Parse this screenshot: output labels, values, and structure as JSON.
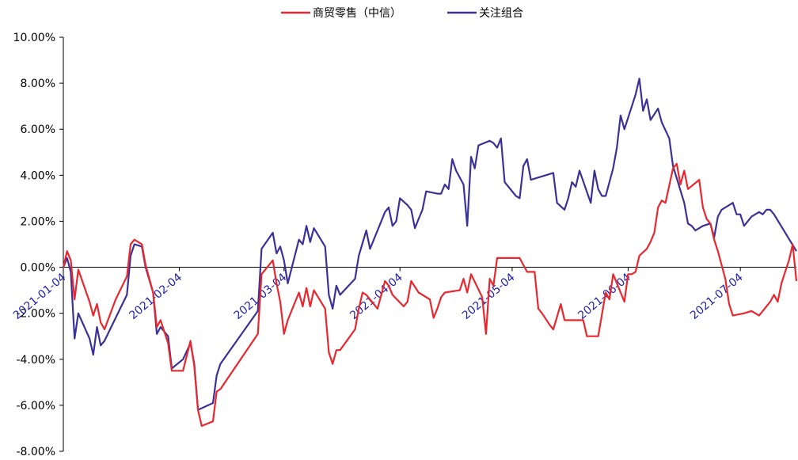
{
  "chart_data": {
    "type": "line",
    "title": "",
    "xlabel": "",
    "ylabel": "",
    "ylim": [
      -8,
      10
    ],
    "xlim": [
      "2021-01-04",
      "2021-07-19"
    ],
    "grid": false,
    "legend_placement": "top-center",
    "y_ticks": [
      "10.00%",
      "8.00%",
      "6.00%",
      "4.00%",
      "2.00%",
      "0.00%",
      "-2.00%",
      "-4.00%",
      "-6.00%",
      "-8.00%"
    ],
    "x_ticks": [
      {
        "label": "2021-01-04",
        "date": "2021-01-04"
      },
      {
        "label": "2021-02-04",
        "date": "2021-02-04"
      },
      {
        "label": "2021-03-04",
        "date": "2021-03-04"
      },
      {
        "label": "2021-04-04",
        "date": "2021-04-04"
      },
      {
        "label": "2021-05-04",
        "date": "2021-05-04"
      },
      {
        "label": "2021-06-04",
        "date": "2021-06-04"
      },
      {
        "label": "2021-07-04",
        "date": "2021-07-04"
      }
    ],
    "series": [
      {
        "name": "商贸零售（中信）",
        "color": "#e8282e",
        "points": [
          [
            "2021-01-04",
            0.0
          ],
          [
            "2021-01-05",
            0.7
          ],
          [
            "2021-01-06",
            0.3
          ],
          [
            "2021-01-07",
            -1.4
          ],
          [
            "2021-01-08",
            -0.1
          ],
          [
            "2021-01-11",
            -1.5
          ],
          [
            "2021-01-12",
            -2.1
          ],
          [
            "2021-01-13",
            -1.6
          ],
          [
            "2021-01-14",
            -2.4
          ],
          [
            "2021-01-15",
            -2.7
          ],
          [
            "2021-01-18",
            -1.4
          ],
          [
            "2021-01-21",
            -0.4
          ],
          [
            "2021-01-22",
            1.0
          ],
          [
            "2021-01-23",
            1.2
          ],
          [
            "2021-01-25",
            1.0
          ],
          [
            "2021-01-26",
            0.1
          ],
          [
            "2021-01-28",
            -1.1
          ],
          [
            "2021-01-29",
            -2.6
          ],
          [
            "2021-01-30",
            -2.3
          ],
          [
            "2021-02-01",
            -3.3
          ],
          [
            "2021-02-02",
            -4.5
          ],
          [
            "2021-02-05",
            -4.5
          ],
          [
            "2021-02-07",
            -3.2
          ],
          [
            "2021-02-08",
            -4.3
          ],
          [
            "2021-02-09",
            -6.2
          ],
          [
            "2021-02-10",
            -6.9
          ],
          [
            "2021-02-13",
            -6.7
          ],
          [
            "2021-02-14",
            -5.4
          ],
          [
            "2021-02-15",
            -5.3
          ],
          [
            "2021-02-25",
            -2.9
          ],
          [
            "2021-02-26",
            -0.3
          ],
          [
            "2021-03-01",
            0.3
          ],
          [
            "2021-03-02",
            -0.7
          ],
          [
            "2021-03-03",
            -1.5
          ],
          [
            "2021-03-04",
            -2.9
          ],
          [
            "2021-03-05",
            -2.3
          ],
          [
            "2021-03-08",
            -1.1
          ],
          [
            "2021-03-09",
            -1.7
          ],
          [
            "2021-03-10",
            -0.9
          ],
          [
            "2021-03-11",
            -1.7
          ],
          [
            "2021-03-12",
            -1.0
          ],
          [
            "2021-03-15",
            -1.8
          ],
          [
            "2021-03-16",
            -3.7
          ],
          [
            "2021-03-17",
            -4.2
          ],
          [
            "2021-03-18",
            -3.6
          ],
          [
            "2021-03-19",
            -3.6
          ],
          [
            "2021-03-23",
            -2.7
          ],
          [
            "2021-03-24",
            -1.8
          ],
          [
            "2021-03-25",
            -1.1
          ],
          [
            "2021-03-26",
            -1.2
          ],
          [
            "2021-03-29",
            -1.8
          ],
          [
            "2021-03-31",
            -0.6
          ],
          [
            "2021-04-01",
            -0.8
          ],
          [
            "2021-04-02",
            -1.2
          ],
          [
            "2021-04-05",
            -1.7
          ],
          [
            "2021-04-06",
            -1.5
          ],
          [
            "2021-04-07",
            -0.6
          ],
          [
            "2021-04-09",
            -1.1
          ],
          [
            "2021-04-12",
            -1.4
          ],
          [
            "2021-04-13",
            -2.2
          ],
          [
            "2021-04-14",
            -1.8
          ],
          [
            "2021-04-15",
            -1.3
          ],
          [
            "2021-04-16",
            -1.1
          ],
          [
            "2021-04-20",
            -1.0
          ],
          [
            "2021-04-21",
            -0.5
          ],
          [
            "2021-04-22",
            -1.1
          ],
          [
            "2021-04-23",
            -0.3
          ],
          [
            "2021-04-26",
            -1.3
          ],
          [
            "2021-04-27",
            -2.9
          ],
          [
            "2021-04-28",
            -0.5
          ],
          [
            "2021-04-29",
            -0.8
          ],
          [
            "2021-04-30",
            0.4
          ],
          [
            "2021-05-04",
            0.4
          ],
          [
            "2021-05-06",
            0.4
          ],
          [
            "2021-05-08",
            -0.2
          ],
          [
            "2021-05-10",
            -0.2
          ],
          [
            "2021-05-11",
            -1.8
          ],
          [
            "2021-05-12",
            -2.0
          ],
          [
            "2021-05-14",
            -2.5
          ],
          [
            "2021-05-15",
            -2.7
          ],
          [
            "2021-05-17",
            -1.6
          ],
          [
            "2021-05-18",
            -2.3
          ],
          [
            "2021-05-23",
            -2.3
          ],
          [
            "2021-05-24",
            -3.0
          ],
          [
            "2021-05-27",
            -3.0
          ],
          [
            "2021-05-29",
            -1.1
          ],
          [
            "2021-05-30",
            -1.4
          ],
          [
            "2021-05-31",
            -0.3
          ],
          [
            "2021-06-03",
            -1.5
          ],
          [
            "2021-06-04",
            -0.3
          ],
          [
            "2021-06-05",
            -0.3
          ],
          [
            "2021-06-06",
            -0.2
          ],
          [
            "2021-06-07",
            0.5
          ],
          [
            "2021-06-09",
            0.8
          ],
          [
            "2021-06-10",
            1.1
          ],
          [
            "2021-06-11",
            1.5
          ],
          [
            "2021-06-12",
            2.6
          ],
          [
            "2021-06-13",
            2.9
          ],
          [
            "2021-06-14",
            2.8
          ],
          [
            "2021-06-16",
            4.3
          ],
          [
            "2021-06-17",
            4.5
          ],
          [
            "2021-06-18",
            3.6
          ],
          [
            "2021-06-19",
            4.2
          ],
          [
            "2021-06-20",
            3.4
          ],
          [
            "2021-06-23",
            3.8
          ],
          [
            "2021-06-24",
            2.6
          ],
          [
            "2021-06-25",
            2.1
          ],
          [
            "2021-06-26",
            1.9
          ],
          [
            "2021-06-27",
            1.2
          ],
          [
            "2021-06-28",
            0.7
          ],
          [
            "2021-06-29",
            0.1
          ],
          [
            "2021-06-30",
            -0.5
          ],
          [
            "2021-07-01",
            -1.6
          ],
          [
            "2021-07-02",
            -2.1
          ],
          [
            "2021-07-05",
            -2.0
          ],
          [
            "2021-07-07",
            -1.9
          ],
          [
            "2021-07-09",
            -2.1
          ],
          [
            "2021-07-10",
            -1.9
          ],
          [
            "2021-07-12",
            -1.5
          ],
          [
            "2021-07-13",
            -1.2
          ],
          [
            "2021-07-14",
            -1.5
          ],
          [
            "2021-07-15",
            -0.7
          ],
          [
            "2021-07-16",
            -0.2
          ],
          [
            "2021-07-17",
            0.3
          ],
          [
            "2021-07-18",
            1.0
          ],
          [
            "2021-07-19",
            -0.6
          ]
        ]
      },
      {
        "name": "关注组合",
        "color": "#3b3196",
        "points": [
          [
            "2021-01-04",
            0.0
          ],
          [
            "2021-01-05",
            0.4
          ],
          [
            "2021-01-06",
            -0.2
          ],
          [
            "2021-01-07",
            -3.1
          ],
          [
            "2021-01-08",
            -2.0
          ],
          [
            "2021-01-11",
            -3.1
          ],
          [
            "2021-01-12",
            -3.8
          ],
          [
            "2021-01-13",
            -2.6
          ],
          [
            "2021-01-14",
            -3.4
          ],
          [
            "2021-01-15",
            -3.2
          ],
          [
            "2021-01-18",
            -2.2
          ],
          [
            "2021-01-21",
            -1.2
          ],
          [
            "2021-01-22",
            0.5
          ],
          [
            "2021-01-23",
            1.0
          ],
          [
            "2021-01-25",
            0.9
          ],
          [
            "2021-01-26",
            0.0
          ],
          [
            "2021-01-28",
            -1.1
          ],
          [
            "2021-01-29",
            -2.9
          ],
          [
            "2021-01-30",
            -2.6
          ],
          [
            "2021-02-01",
            -3.0
          ],
          [
            "2021-02-02",
            -4.4
          ],
          [
            "2021-02-05",
            -4.0
          ],
          [
            "2021-02-07",
            -3.3
          ],
          [
            "2021-02-08",
            -4.2
          ],
          [
            "2021-02-09",
            -6.2
          ],
          [
            "2021-02-13",
            -5.9
          ],
          [
            "2021-02-14",
            -4.7
          ],
          [
            "2021-02-15",
            -4.2
          ],
          [
            "2021-02-25",
            -1.9
          ],
          [
            "2021-02-26",
            0.8
          ],
          [
            "2021-03-01",
            1.5
          ],
          [
            "2021-03-02",
            0.6
          ],
          [
            "2021-03-03",
            0.9
          ],
          [
            "2021-03-04",
            0.3
          ],
          [
            "2021-03-05",
            -0.7
          ],
          [
            "2021-03-08",
            1.2
          ],
          [
            "2021-03-09",
            1.0
          ],
          [
            "2021-03-10",
            1.8
          ],
          [
            "2021-03-11",
            1.1
          ],
          [
            "2021-03-12",
            1.7
          ],
          [
            "2021-03-15",
            0.9
          ],
          [
            "2021-03-16",
            -1.2
          ],
          [
            "2021-03-17",
            -1.8
          ],
          [
            "2021-03-18",
            -0.8
          ],
          [
            "2021-03-19",
            -1.2
          ],
          [
            "2021-03-23",
            -0.5
          ],
          [
            "2021-03-24",
            0.5
          ],
          [
            "2021-03-26",
            1.6
          ],
          [
            "2021-03-27",
            0.8
          ],
          [
            "2021-03-29",
            1.6
          ],
          [
            "2021-03-31",
            2.4
          ],
          [
            "2021-04-01",
            2.6
          ],
          [
            "2021-04-02",
            1.8
          ],
          [
            "2021-04-03",
            2.0
          ],
          [
            "2021-04-04",
            3.0
          ],
          [
            "2021-04-06",
            2.7
          ],
          [
            "2021-04-07",
            2.5
          ],
          [
            "2021-04-08",
            1.7
          ],
          [
            "2021-04-09",
            2.1
          ],
          [
            "2021-04-10",
            2.5
          ],
          [
            "2021-04-11",
            3.3
          ],
          [
            "2021-04-14",
            3.2
          ],
          [
            "2021-04-15",
            3.2
          ],
          [
            "2021-04-16",
            3.6
          ],
          [
            "2021-04-17",
            3.4
          ],
          [
            "2021-04-18",
            4.7
          ],
          [
            "2021-04-19",
            4.2
          ],
          [
            "2021-04-21",
            3.6
          ],
          [
            "2021-04-22",
            1.8
          ],
          [
            "2021-04-23",
            4.8
          ],
          [
            "2021-04-24",
            4.3
          ],
          [
            "2021-04-25",
            5.3
          ],
          [
            "2021-04-28",
            5.5
          ],
          [
            "2021-04-29",
            5.4
          ],
          [
            "2021-04-30",
            5.2
          ],
          [
            "2021-05-01",
            5.6
          ],
          [
            "2021-05-02",
            3.7
          ],
          [
            "2021-05-05",
            3.1
          ],
          [
            "2021-05-06",
            3.0
          ],
          [
            "2021-05-07",
            4.4
          ],
          [
            "2021-05-08",
            4.7
          ],
          [
            "2021-05-09",
            3.8
          ],
          [
            "2021-05-15",
            4.1
          ],
          [
            "2021-05-16",
            2.8
          ],
          [
            "2021-05-18",
            2.5
          ],
          [
            "2021-05-19",
            3.0
          ],
          [
            "2021-05-20",
            3.7
          ],
          [
            "2021-05-21",
            3.5
          ],
          [
            "2021-05-22",
            4.2
          ],
          [
            "2021-05-25",
            2.8
          ],
          [
            "2021-05-26",
            4.2
          ],
          [
            "2021-05-27",
            3.4
          ],
          [
            "2021-05-28",
            3.1
          ],
          [
            "2021-05-29",
            3.1
          ],
          [
            "2021-05-31",
            4.3
          ],
          [
            "2021-06-01",
            5.2
          ],
          [
            "2021-06-02",
            6.6
          ],
          [
            "2021-06-03",
            6.0
          ],
          [
            "2021-06-05",
            7.0
          ],
          [
            "2021-06-06",
            7.5
          ],
          [
            "2021-06-07",
            8.2
          ],
          [
            "2021-06-08",
            6.8
          ],
          [
            "2021-06-09",
            7.3
          ],
          [
            "2021-06-10",
            6.4
          ],
          [
            "2021-06-12",
            6.9
          ],
          [
            "2021-06-13",
            6.3
          ],
          [
            "2021-06-15",
            5.6
          ],
          [
            "2021-06-16",
            4.4
          ],
          [
            "2021-06-19",
            2.8
          ],
          [
            "2021-06-20",
            1.9
          ],
          [
            "2021-06-21",
            1.8
          ],
          [
            "2021-06-22",
            1.6
          ],
          [
            "2021-06-24",
            1.8
          ],
          [
            "2021-06-26",
            1.9
          ],
          [
            "2021-06-27",
            1.3
          ],
          [
            "2021-06-28",
            2.2
          ],
          [
            "2021-06-29",
            2.5
          ],
          [
            "2021-07-02",
            2.8
          ],
          [
            "2021-07-03",
            2.3
          ],
          [
            "2021-07-04",
            2.3
          ],
          [
            "2021-07-05",
            1.8
          ],
          [
            "2021-07-07",
            2.2
          ],
          [
            "2021-07-09",
            2.4
          ],
          [
            "2021-07-10",
            2.3
          ],
          [
            "2021-07-11",
            2.5
          ],
          [
            "2021-07-12",
            2.5
          ],
          [
            "2021-07-13",
            2.3
          ],
          [
            "2021-07-19",
            0.7
          ]
        ]
      }
    ]
  }
}
